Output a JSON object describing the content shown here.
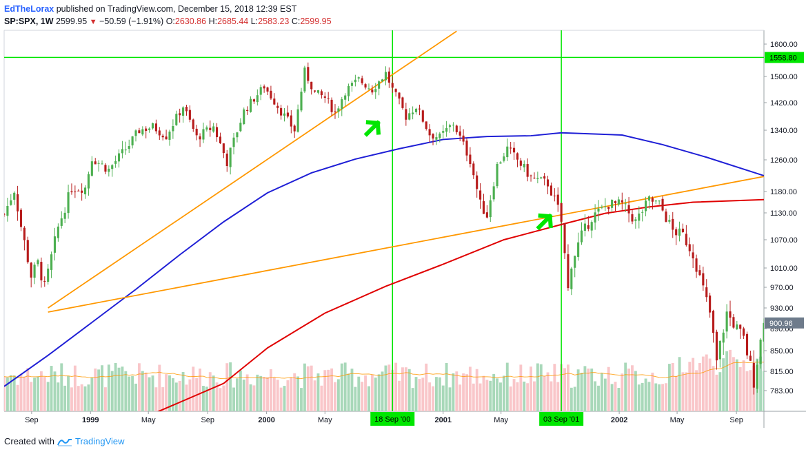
{
  "header": {
    "author": "EdTheLorax",
    "published_text": "published on TradingView.com, December 15, 2018 12:39 EST",
    "symbol": "SP:SPX, 1W",
    "last": "2599.95",
    "change": "−50.59 (−1.91%)",
    "open_label": "O:",
    "open": "2630.86",
    "high_label": "H:",
    "high": "2685.44",
    "low_label": "L:",
    "low": "2583.23",
    "close_label": "C:",
    "close": "2599.95"
  },
  "footer": {
    "created_with": "Created with",
    "brand": "TradingView"
  },
  "colors": {
    "up": "#4caf50",
    "down": "#b71c1c",
    "green_line": "#00e600",
    "orange": "#ff9800",
    "blue": "#1f1fd6",
    "red": "#e00000",
    "vol_up": "#a8d8b9",
    "vol_down": "#f9c6c9"
  },
  "chart_data": {
    "type": "candlestick",
    "timeframe": "1W",
    "ylim": [
      740,
      1640
    ],
    "xlim": [
      "1998-07-06",
      "2002-10-28"
    ],
    "y_ticks": [
      1600,
      1500,
      1420,
      1340,
      1260,
      1180,
      1130,
      1070,
      1010,
      970,
      930,
      890,
      850,
      815,
      783
    ],
    "x_ticks": [
      {
        "date": "1998-09-01",
        "label": "Sep",
        "bold": false
      },
      {
        "date": "1999-01-01",
        "label": "1999",
        "bold": true
      },
      {
        "date": "1999-05-01",
        "label": "May",
        "bold": false
      },
      {
        "date": "1999-09-01",
        "label": "Sep",
        "bold": false
      },
      {
        "date": "2000-01-01",
        "label": "2000",
        "bold": true
      },
      {
        "date": "2000-05-01",
        "label": "May",
        "bold": false
      },
      {
        "date": "2001-01-01",
        "label": "2001",
        "bold": true
      },
      {
        "date": "2001-05-01",
        "label": "May",
        "bold": false
      },
      {
        "date": "2002-01-01",
        "label": "2002",
        "bold": true
      },
      {
        "date": "2002-05-01",
        "label": "May",
        "bold": false
      },
      {
        "date": "2002-09-01",
        "label": "Sep",
        "bold": false
      }
    ],
    "price_labels": [
      {
        "value": 1558.8,
        "text": "1558.80",
        "color": "#00e600",
        "text_color": "#000000"
      },
      {
        "value": 900.96,
        "text": "900.96",
        "color": "#6e7b8b",
        "text_color": "#ffffff"
      }
    ],
    "horizontal_line": {
      "value": 1558.8,
      "color": "#00e600"
    },
    "vertical_lines": [
      {
        "date": "2000-09-18",
        "label": "18 Sep '00",
        "color": "#00e600"
      },
      {
        "date": "2001-09-03",
        "label": "03 Sep '01",
        "color": "#00e600"
      }
    ],
    "trend_lines": [
      {
        "from": [
          "1998-10-05",
          930
        ],
        "to": [
          "2001-01-29",
          1640
        ],
        "color": "#ff9800"
      },
      {
        "from": [
          "1998-10-05",
          922
        ],
        "to": [
          "2002-10-28",
          1218
        ],
        "color": "#ff9800"
      }
    ],
    "moving_averages": [
      {
        "color": "#1f1fd6",
        "points": [
          [
            "1998-07-06",
            790
          ],
          [
            "1998-10-05",
            842
          ],
          [
            "1999-01-04",
            902
          ],
          [
            "1999-04-05",
            966
          ],
          [
            "1999-07-05",
            1038
          ],
          [
            "1999-10-04",
            1110
          ],
          [
            "2000-01-03",
            1177
          ],
          [
            "2000-04-03",
            1227
          ],
          [
            "2000-07-03",
            1262
          ],
          [
            "2000-10-02",
            1290
          ],
          [
            "2001-01-01",
            1315
          ],
          [
            "2001-04-02",
            1323
          ],
          [
            "2001-07-02",
            1325
          ],
          [
            "2001-09-03",
            1333
          ],
          [
            "2002-01-07",
            1327
          ],
          [
            "2002-04-01",
            1301
          ],
          [
            "2002-07-01",
            1267
          ],
          [
            "2002-10-28",
            1220
          ]
        ]
      },
      {
        "color": "#e00000",
        "points": [
          [
            "1999-05-03",
            742
          ],
          [
            "1999-10-04",
            795
          ],
          [
            "2000-01-03",
            855
          ],
          [
            "2000-05-01",
            920
          ],
          [
            "2000-09-04",
            972
          ],
          [
            "2001-01-01",
            1018
          ],
          [
            "2001-05-07",
            1070
          ],
          [
            "2001-09-03",
            1104
          ],
          [
            "2001-12-03",
            1129
          ],
          [
            "2002-03-04",
            1144
          ],
          [
            "2002-06-03",
            1155
          ],
          [
            "2002-10-28",
            1161
          ]
        ]
      }
    ],
    "annotations": [
      {
        "type": "arrow",
        "direction": "up-right",
        "date": "2000-08-07",
        "value": 1345,
        "color": "#00e600"
      },
      {
        "type": "arrow",
        "direction": "up-right",
        "date": "2001-07-30",
        "value": 1110,
        "color": "#00e600"
      }
    ],
    "anchors": [
      [
        "1998-07-06",
        1127
      ],
      [
        "1998-07-27",
        1184
      ],
      [
        "1998-08-10",
        1100
      ],
      [
        "1998-08-31",
        994
      ],
      [
        "1998-09-14",
        1020
      ],
      [
        "1998-09-28",
        970
      ],
      [
        "1998-10-05",
        1000
      ],
      [
        "1998-10-26",
        1098
      ],
      [
        "1998-11-23",
        1188
      ],
      [
        "1998-12-21",
        1190
      ],
      [
        "1999-01-04",
        1265
      ],
      [
        "1999-02-08",
        1235
      ],
      [
        "1999-03-22",
        1300
      ],
      [
        "1999-04-12",
        1340
      ],
      [
        "1999-05-10",
        1350
      ],
      [
        "1999-06-07",
        1325
      ],
      [
        "1999-07-12",
        1410
      ],
      [
        "1999-08-09",
        1320
      ],
      [
        "1999-09-13",
        1350
      ],
      [
        "1999-10-11",
        1255
      ],
      [
        "1999-11-15",
        1395
      ],
      [
        "1999-12-27",
        1470
      ],
      [
        "2000-01-31",
        1395
      ],
      [
        "2000-02-28",
        1340
      ],
      [
        "2000-03-20",
        1515
      ],
      [
        "2000-04-10",
        1450
      ],
      [
        "2000-05-01",
        1435
      ],
      [
        "2000-05-22",
        1390
      ],
      [
        "2000-06-12",
        1455
      ],
      [
        "2000-07-10",
        1490
      ],
      [
        "2000-08-07",
        1460
      ],
      [
        "2000-09-04",
        1510
      ],
      [
        "2000-09-18",
        1460
      ],
      [
        "2000-10-16",
        1380
      ],
      [
        "2000-11-06",
        1410
      ],
      [
        "2000-12-04",
        1330
      ],
      [
        "2000-12-25",
        1320
      ],
      [
        "2001-01-22",
        1360
      ],
      [
        "2001-02-26",
        1260
      ],
      [
        "2001-03-19",
        1150
      ],
      [
        "2001-04-02",
        1125
      ],
      [
        "2001-04-23",
        1245
      ],
      [
        "2001-05-14",
        1290
      ],
      [
        "2001-06-04",
        1260
      ],
      [
        "2001-07-02",
        1215
      ],
      [
        "2001-08-06",
        1200
      ],
      [
        "2001-08-27",
        1140
      ],
      [
        "2001-09-03",
        1110
      ],
      [
        "2001-09-17",
        965
      ],
      [
        "2001-09-24",
        1020
      ],
      [
        "2001-10-15",
        1080
      ],
      [
        "2001-11-05",
        1120
      ],
      [
        "2001-12-10",
        1150
      ],
      [
        "2002-01-07",
        1150
      ],
      [
        "2002-02-04",
        1110
      ],
      [
        "2002-03-04",
        1160
      ],
      [
        "2002-03-25",
        1150
      ],
      [
        "2002-04-22",
        1090
      ],
      [
        "2002-05-13",
        1080
      ],
      [
        "2002-06-03",
        1040
      ],
      [
        "2002-06-17",
        990
      ],
      [
        "2002-07-08",
        920
      ],
      [
        "2002-07-22",
        830
      ],
      [
        "2002-08-12",
        920
      ],
      [
        "2002-08-26",
        900
      ],
      [
        "2002-09-16",
        870
      ],
      [
        "2002-10-07",
        800
      ],
      [
        "2002-10-28",
        900.96
      ]
    ],
    "volume": {
      "note": "Weekly volume histogram; bar color follows candle direction; moving average overlay in orange",
      "ma_color": "#ff9800"
    }
  }
}
